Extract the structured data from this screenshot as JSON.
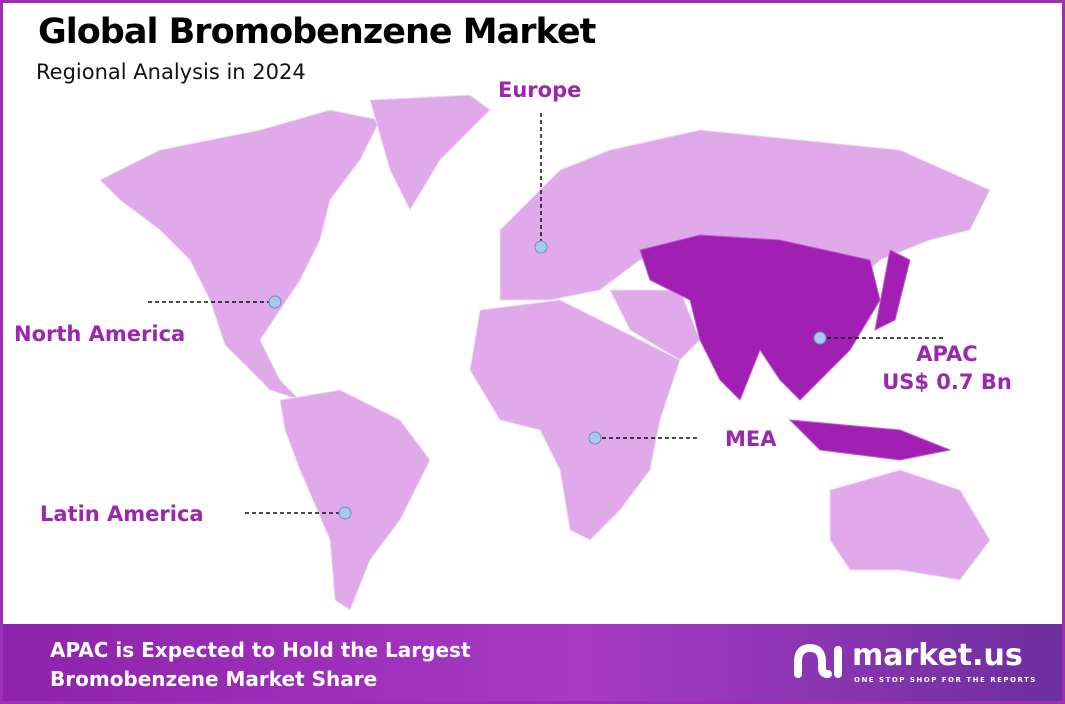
{
  "header": {
    "title": "Global Bromobenzene Market",
    "subtitle": "Regional Analysis in 2024"
  },
  "regions": [
    {
      "name": "Europe"
    },
    {
      "name": "North America"
    },
    {
      "name": "APAC",
      "value": "US$ 0.7 Bn",
      "highlighted": true
    },
    {
      "name": "MEA"
    },
    {
      "name": "Latin America"
    }
  ],
  "colors": {
    "land": "#e0a9ea",
    "highlight": "#a21fb3",
    "label": "#9b27af",
    "marker": "#a9c8ee"
  },
  "footer": {
    "line1": "APAC is Expected to Hold the Largest",
    "line2": "Bromobenzene Market Share"
  },
  "logo": {
    "name": "market.us",
    "tagline": "ONE STOP SHOP FOR THE REPORTS"
  }
}
